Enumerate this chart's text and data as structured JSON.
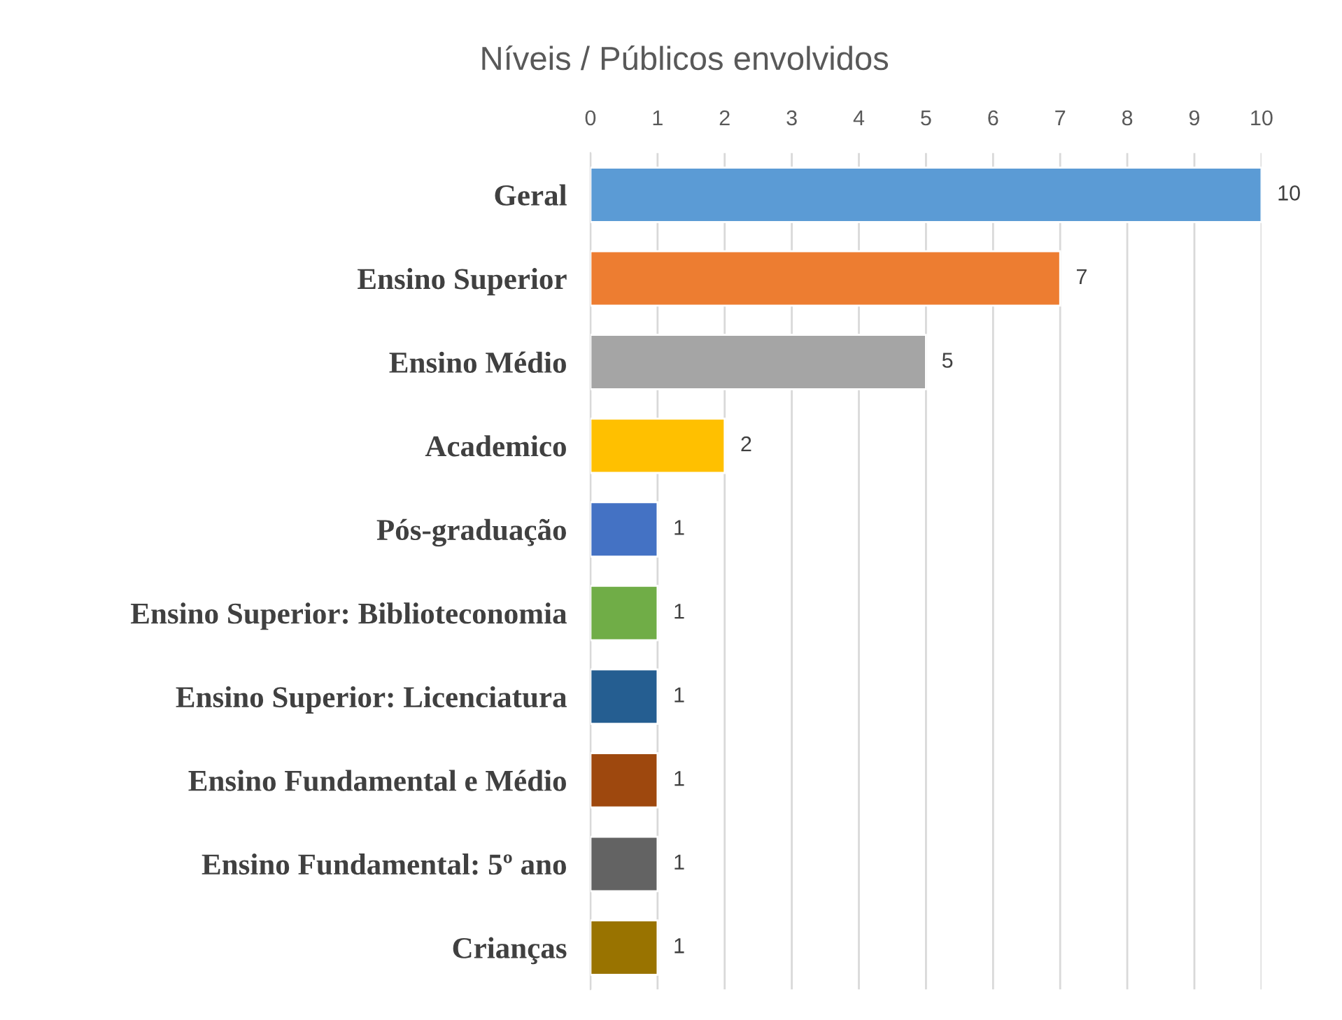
{
  "chart_data": {
    "type": "bar",
    "orientation": "horizontal",
    "title": "Níveis / Públicos envolvidos",
    "categories": [
      "Geral",
      "Ensino Superior",
      "Ensino Médio",
      "Academico",
      "Pós-graduação",
      "Ensino Superior: Biblioteconomia",
      "Ensino Superior: Licenciatura",
      "Ensino Fundamental e Médio",
      "Ensino Fundamental: 5º ano",
      "Crianças"
    ],
    "values": [
      10,
      7,
      5,
      2,
      1,
      1,
      1,
      1,
      1,
      1
    ],
    "colors": [
      "#5b9bd5",
      "#ed7d31",
      "#a5a5a5",
      "#ffc000",
      "#4472c4",
      "#70ad47",
      "#255e91",
      "#9e480e",
      "#636363",
      "#997300"
    ],
    "xlim": [
      0,
      10
    ],
    "xticks": [
      0,
      1,
      2,
      3,
      4,
      5,
      6,
      7,
      8,
      9,
      10
    ],
    "grid": "x",
    "data_labels": true,
    "legend": false
  }
}
